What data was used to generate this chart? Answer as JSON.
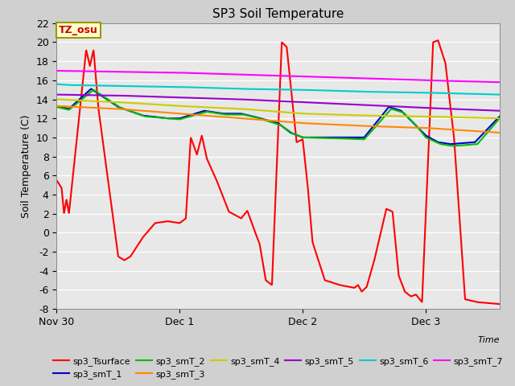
{
  "title": "SP3 Soil Temperature",
  "ylabel": "Soil Temperature (C)",
  "xlabel": "Time",
  "ylim": [
    -8,
    22
  ],
  "yticks": [
    -8,
    -6,
    -4,
    -2,
    0,
    2,
    4,
    6,
    8,
    10,
    12,
    14,
    16,
    18,
    20,
    22
  ],
  "xtick_labels": [
    "Nov 30",
    "Dec 1",
    "Dec 2",
    "Dec 3"
  ],
  "tz_label": "TZ_osu",
  "fig_facecolor": "#d0d0d0",
  "ax_facecolor": "#e8e8e8",
  "grid_color": "#ffffff",
  "series": {
    "sp3_Tsurface": {
      "color": "#ff0000",
      "lw": 1.5
    },
    "sp3_smT_1": {
      "color": "#0000cc",
      "lw": 1.5
    },
    "sp3_smT_2": {
      "color": "#00bb00",
      "lw": 1.5
    },
    "sp3_smT_3": {
      "color": "#ff8800",
      "lw": 1.5
    },
    "sp3_smT_4": {
      "color": "#cccc00",
      "lw": 1.5
    },
    "sp3_smT_5": {
      "color": "#9900cc",
      "lw": 1.5
    },
    "sp3_smT_6": {
      "color": "#00cccc",
      "lw": 1.5
    },
    "sp3_smT_7": {
      "color": "#ff00ff",
      "lw": 1.5
    }
  }
}
